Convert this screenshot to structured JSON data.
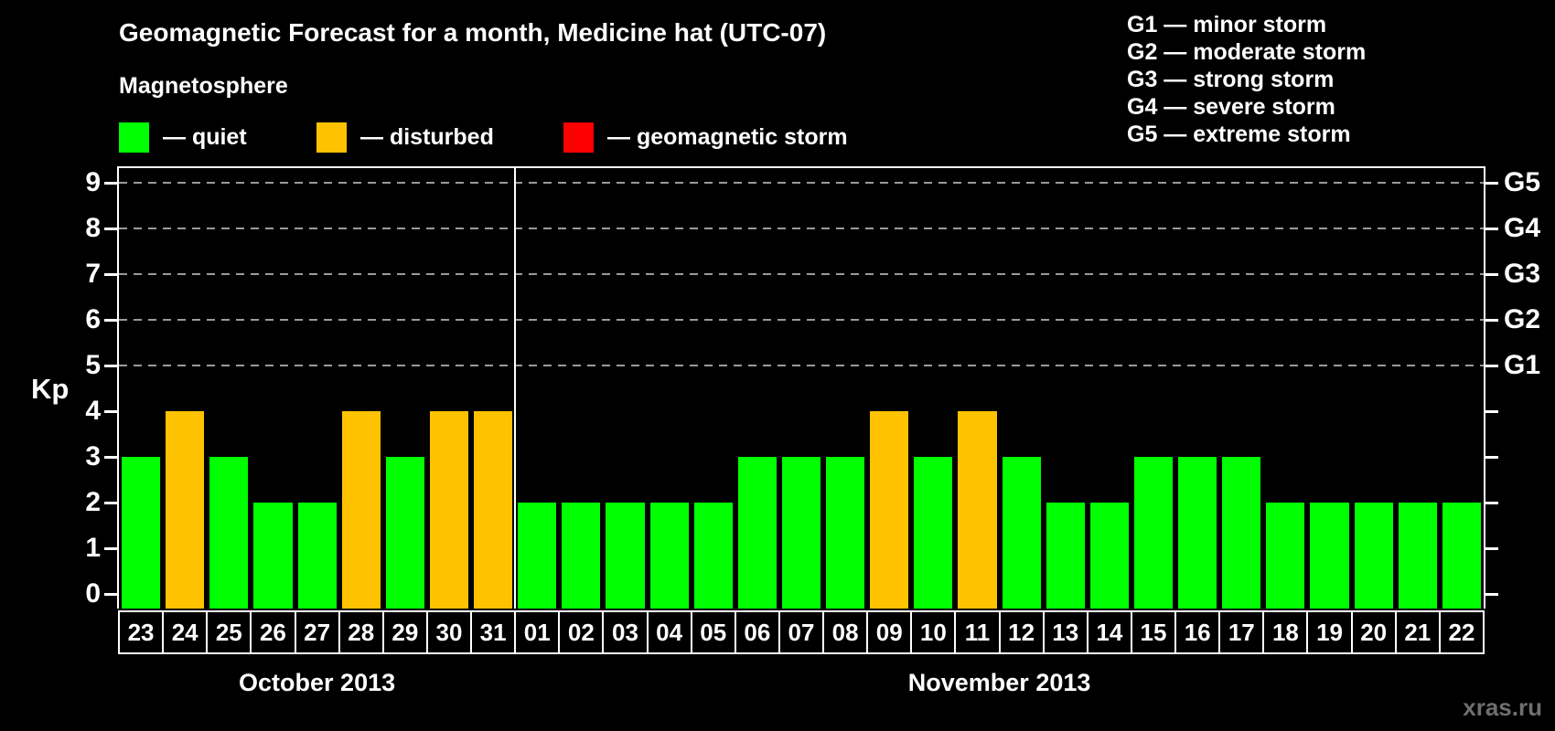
{
  "header": {
    "title": "Geomagnetic Forecast for a month, Medicine hat (UTC-07)",
    "subtitle": "Magnetosphere"
  },
  "legend": {
    "items": [
      {
        "name": "quiet",
        "label": "— quiet",
        "color": "#00ff00"
      },
      {
        "name": "disturbed",
        "label": "— disturbed",
        "color": "#ffc200"
      },
      {
        "name": "storm",
        "label": "— geomagnetic storm",
        "color": "#ff0000"
      }
    ]
  },
  "g_scale_legend": {
    "items": [
      "G1 — minor storm",
      "G2 — moderate storm",
      "G3 — strong storm",
      "G4 — severe storm",
      "G5 — extreme storm"
    ]
  },
  "watermark": "xras.ru",
  "chart_data": {
    "type": "bar",
    "title": "Geomagnetic Forecast for a month, Medicine hat (UTC-07)",
    "subtitle": "Magnetosphere",
    "ylabel": "Kp",
    "ylim": [
      0,
      9
    ],
    "yticks": [
      "0",
      "1",
      "2",
      "3",
      "4",
      "5",
      "6",
      "7",
      "8",
      "9"
    ],
    "grid": "dashed horizontal lines at Kp 5-9 only",
    "gridlines_at_kp": [
      5,
      6,
      7,
      8,
      9
    ],
    "right_axis": {
      "labels": [
        "G1",
        "G2",
        "G3",
        "G4",
        "G5"
      ],
      "at_kp": [
        5,
        6,
        7,
        8,
        9
      ]
    },
    "state_colors": {
      "quiet": "#00ff00",
      "disturbed": "#ffc200",
      "storm": "#ff0000"
    },
    "groups": [
      {
        "month": "October 2013",
        "days": [
          {
            "day": "23",
            "kp": 3,
            "state": "quiet"
          },
          {
            "day": "24",
            "kp": 4,
            "state": "disturbed"
          },
          {
            "day": "25",
            "kp": 3,
            "state": "quiet"
          },
          {
            "day": "26",
            "kp": 2,
            "state": "quiet"
          },
          {
            "day": "27",
            "kp": 2,
            "state": "quiet"
          },
          {
            "day": "28",
            "kp": 4,
            "state": "disturbed"
          },
          {
            "day": "29",
            "kp": 3,
            "state": "quiet"
          },
          {
            "day": "30",
            "kp": 4,
            "state": "disturbed"
          },
          {
            "day": "31",
            "kp": 4,
            "state": "disturbed"
          }
        ]
      },
      {
        "month": "November 2013",
        "days": [
          {
            "day": "01",
            "kp": 2,
            "state": "quiet"
          },
          {
            "day": "02",
            "kp": 2,
            "state": "quiet"
          },
          {
            "day": "03",
            "kp": 2,
            "state": "quiet"
          },
          {
            "day": "04",
            "kp": 2,
            "state": "quiet"
          },
          {
            "day": "05",
            "kp": 2,
            "state": "quiet"
          },
          {
            "day": "06",
            "kp": 3,
            "state": "quiet"
          },
          {
            "day": "07",
            "kp": 3,
            "state": "quiet"
          },
          {
            "day": "08",
            "kp": 3,
            "state": "quiet"
          },
          {
            "day": "09",
            "kp": 4,
            "state": "disturbed"
          },
          {
            "day": "10",
            "kp": 3,
            "state": "quiet"
          },
          {
            "day": "11",
            "kp": 4,
            "state": "disturbed"
          },
          {
            "day": "12",
            "kp": 3,
            "state": "quiet"
          },
          {
            "day": "13",
            "kp": 2,
            "state": "quiet"
          },
          {
            "day": "14",
            "kp": 2,
            "state": "quiet"
          },
          {
            "day": "15",
            "kp": 3,
            "state": "quiet"
          },
          {
            "day": "16",
            "kp": 3,
            "state": "quiet"
          },
          {
            "day": "17",
            "kp": 3,
            "state": "quiet"
          },
          {
            "day": "18",
            "kp": 2,
            "state": "quiet"
          },
          {
            "day": "19",
            "kp": 2,
            "state": "quiet"
          },
          {
            "day": "20",
            "kp": 2,
            "state": "quiet"
          },
          {
            "day": "21",
            "kp": 2,
            "state": "quiet"
          },
          {
            "day": "22",
            "kp": 2,
            "state": "quiet"
          }
        ]
      }
    ]
  }
}
